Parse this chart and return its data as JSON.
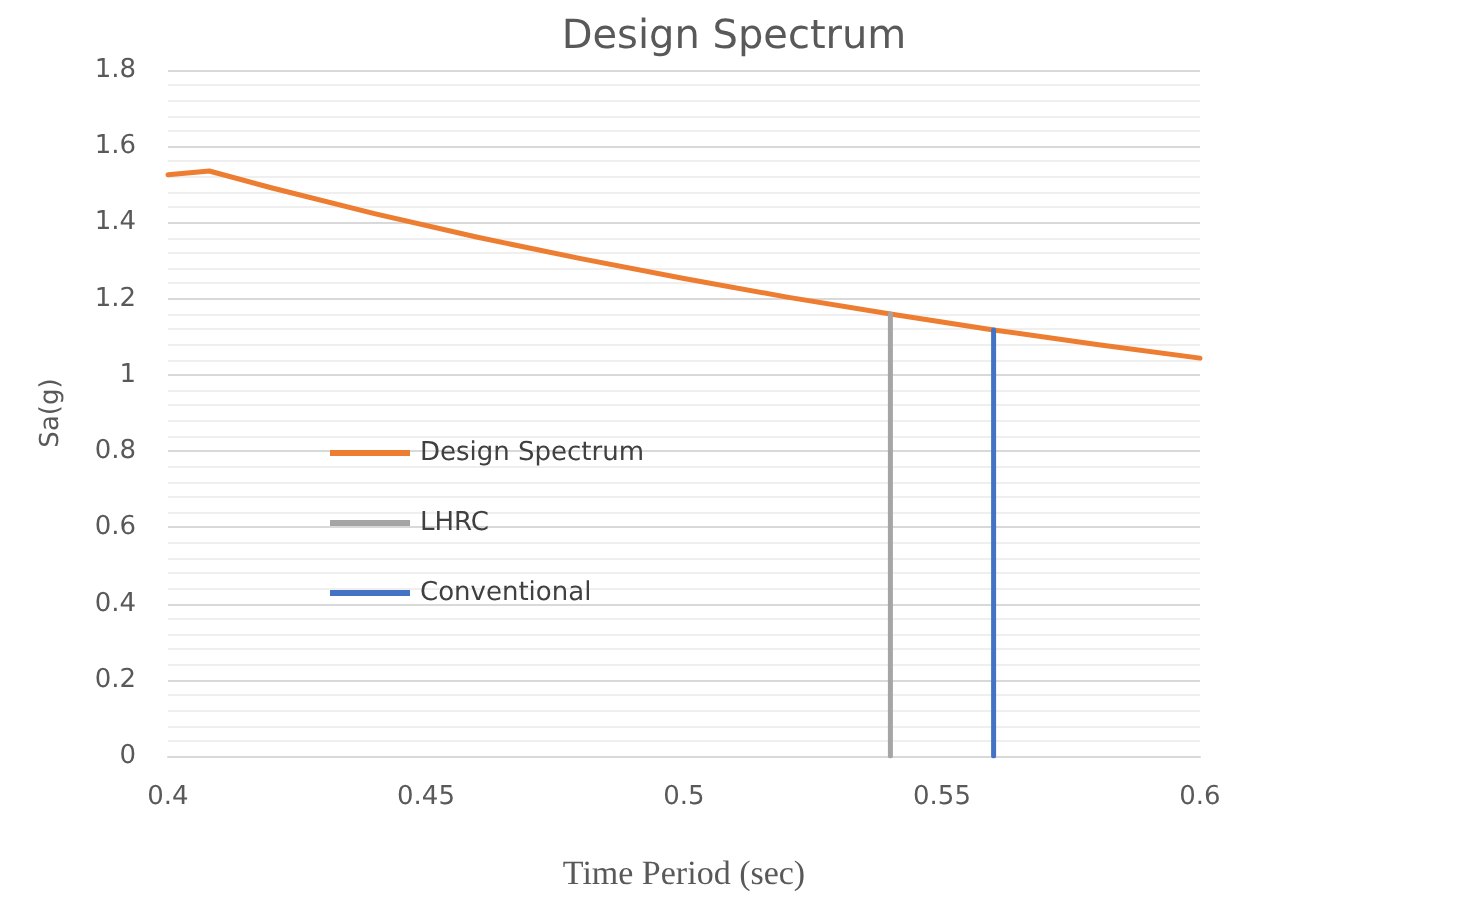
{
  "chart_data": {
    "type": "line",
    "title": "Design Spectrum",
    "xlabel": "Time Period (sec)",
    "ylabel": "Sa(g)",
    "series": [
      {
        "name": "Design Spectrum",
        "color": "#ed7d31",
        "x": [
          0.4,
          0.408,
          0.42,
          0.44,
          0.46,
          0.48,
          0.5,
          0.52,
          0.54,
          0.56,
          0.58,
          0.6
        ],
        "values": [
          1.525,
          1.535,
          1.491,
          1.423,
          1.361,
          1.305,
          1.253,
          1.204,
          1.16,
          1.118,
          1.08,
          1.044
        ]
      },
      {
        "name": "LHRC",
        "color": "#a5a5a5",
        "x": [
          0.54,
          0.54
        ],
        "values": [
          0,
          1.16
        ]
      },
      {
        "name": "Conventional",
        "color": "#4472c4",
        "x": [
          0.56,
          0.56
        ],
        "values": [
          0,
          1.118
        ]
      }
    ],
    "xlim": [
      0.4,
      0.6
    ],
    "xticks": [
      0.4,
      0.45,
      0.5,
      0.55,
      0.6
    ],
    "ylim": [
      0,
      1.8
    ],
    "yticks": [
      0,
      0.2,
      0.4,
      0.6,
      0.8,
      1,
      1.2,
      1.4,
      1.6,
      1.8
    ],
    "grid": "y",
    "legend": "left",
    "marker": "none",
    "line_style": "solid"
  }
}
